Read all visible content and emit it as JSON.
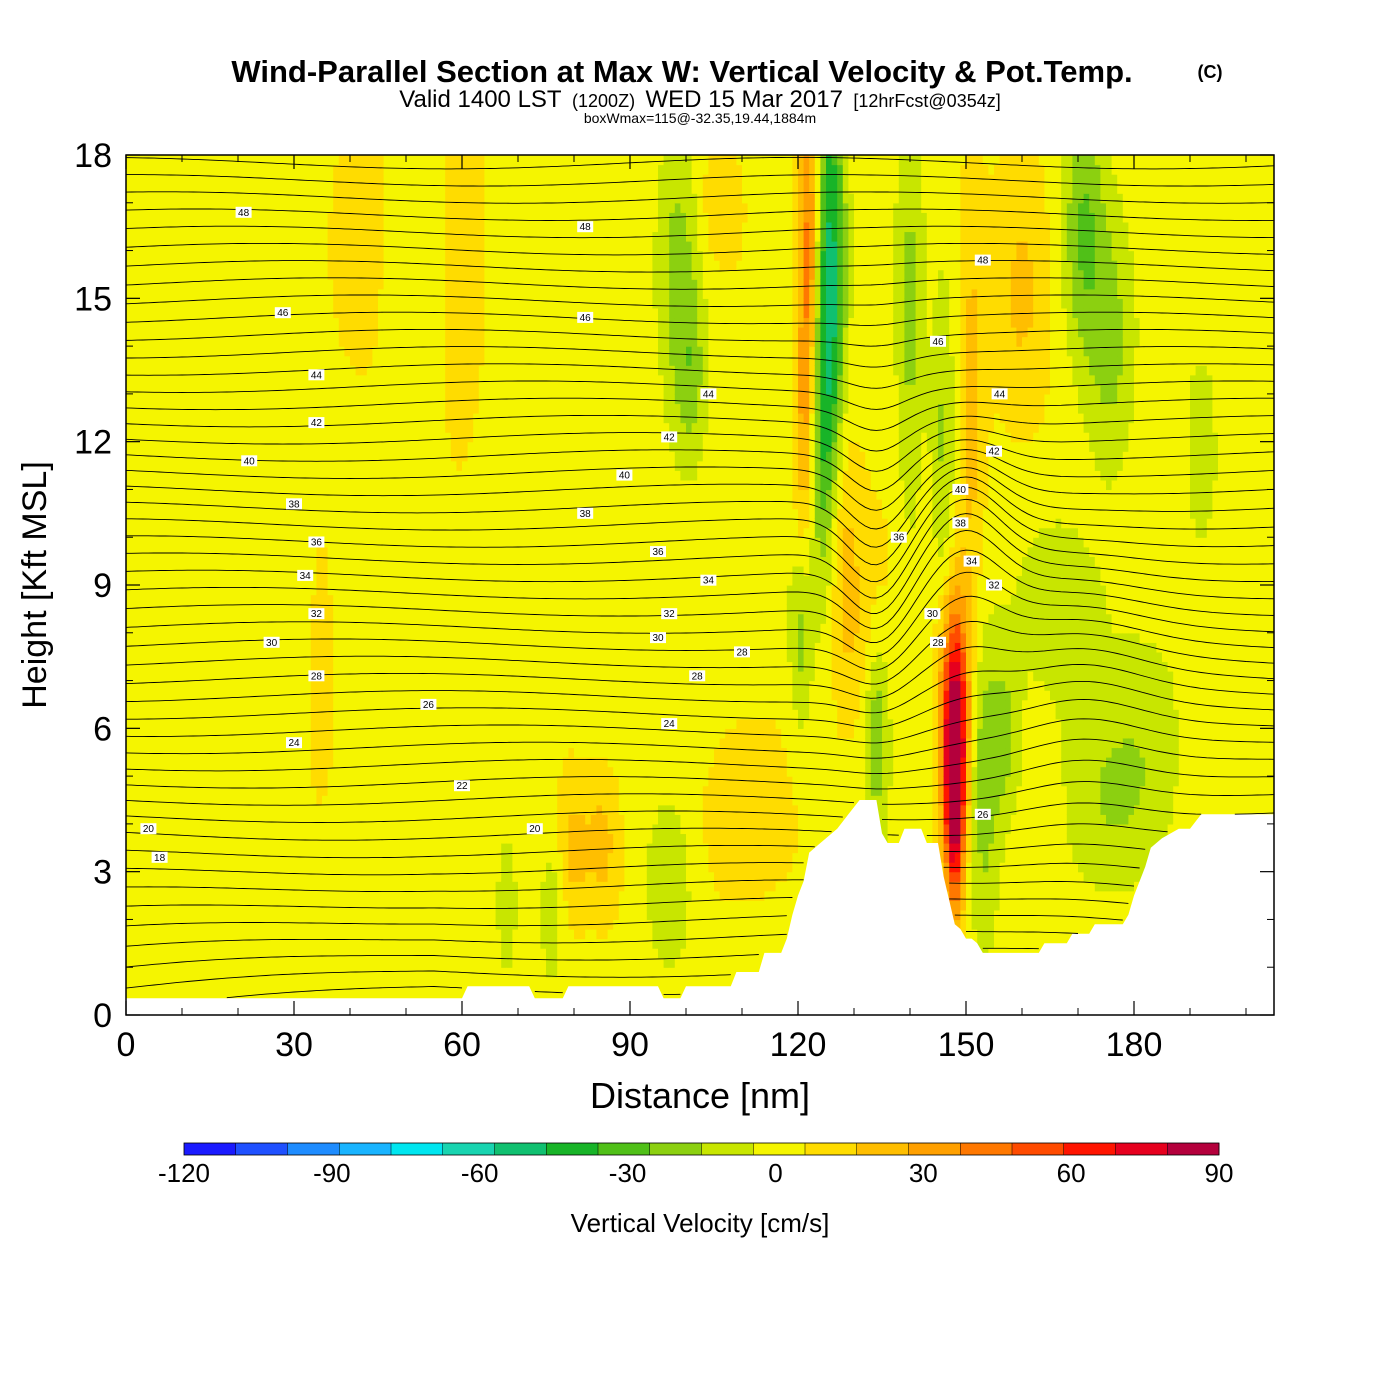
{
  "chart_data": {
    "type": "heatmap",
    "title": "Wind-Parallel Section at Max W: Vertical Velocity & Pot.Temp.",
    "title_mark": "(C)",
    "subtitle_parts": [
      "Valid 1400 LST",
      "(1200Z)",
      "WED 15 Mar 2017",
      "[12hrFcst@0354z]"
    ],
    "subtitle2": "boxWmax=115@-32.35,19.44,1884m",
    "xlabel": "Distance [nm]",
    "ylabel": "Height [Kft MSL]",
    "xlim": [
      0,
      205
    ],
    "ylim": [
      0,
      18
    ],
    "xticks": [
      0,
      30,
      60,
      90,
      120,
      150,
      180
    ],
    "yticks": [
      0,
      3,
      6,
      9,
      12,
      15,
      18
    ],
    "colorbar": {
      "label": "Vertical Velocity [cm/s]",
      "range": [
        -120,
        90
      ],
      "ticks": [
        -120,
        -90,
        -60,
        -30,
        0,
        30,
        60,
        90
      ],
      "colors": [
        "#1a1aff",
        "#1f50ff",
        "#1e8cff",
        "#19b4ff",
        "#00e6f0",
        "#18d4b0",
        "#10c070",
        "#18b428",
        "#50c018",
        "#8cd010",
        "#c8e600",
        "#f5f500",
        "#ffdc00",
        "#ffbe00",
        "#ffa000",
        "#ff7800",
        "#ff4b00",
        "#ff1400",
        "#e6001e",
        "#b4003c"
      ]
    },
    "terrain": [
      [
        0,
        0.35
      ],
      [
        60,
        0.35
      ],
      [
        61,
        0.6
      ],
      [
        72,
        0.6
      ],
      [
        73,
        0.35
      ],
      [
        78,
        0.35
      ],
      [
        79,
        0.6
      ],
      [
        95,
        0.6
      ],
      [
        96,
        0.35
      ],
      [
        99,
        0.35
      ],
      [
        100,
        0.6
      ],
      [
        108,
        0.6
      ],
      [
        109,
        0.9
      ],
      [
        113,
        0.9
      ],
      [
        114,
        1.3
      ],
      [
        117,
        1.3
      ],
      [
        118,
        1.6
      ],
      [
        119,
        2.1
      ],
      [
        120,
        2.5
      ],
      [
        121,
        2.8
      ],
      [
        122,
        3.4
      ],
      [
        124,
        3.6
      ],
      [
        127,
        3.9
      ],
      [
        129,
        4.2
      ],
      [
        131,
        4.5
      ],
      [
        134,
        4.5
      ],
      [
        135,
        3.8
      ],
      [
        136,
        3.6
      ],
      [
        138,
        3.6
      ],
      [
        139,
        3.9
      ],
      [
        142,
        3.9
      ],
      [
        143,
        3.6
      ],
      [
        145,
        3.6
      ],
      [
        146,
        2.9
      ],
      [
        147,
        2.4
      ],
      [
        148,
        1.9
      ],
      [
        149,
        1.8
      ],
      [
        150,
        1.6
      ],
      [
        151,
        1.6
      ],
      [
        152,
        1.5
      ],
      [
        153,
        1.3
      ],
      [
        163,
        1.3
      ],
      [
        164,
        1.5
      ],
      [
        168,
        1.5
      ],
      [
        169,
        1.7
      ],
      [
        172,
        1.7
      ],
      [
        173,
        1.9
      ],
      [
        178,
        1.9
      ],
      [
        179,
        2.1
      ],
      [
        180,
        2.5
      ],
      [
        181,
        2.8
      ],
      [
        182,
        3.1
      ],
      [
        183,
        3.5
      ],
      [
        185,
        3.7
      ],
      [
        188,
        3.9
      ],
      [
        190,
        3.9
      ],
      [
        192,
        4.2
      ],
      [
        205,
        4.2
      ]
    ],
    "contour_labels": [
      {
        "v": "48",
        "x": 21,
        "y": 16.8
      },
      {
        "v": "48",
        "x": 82,
        "y": 16.5
      },
      {
        "v": "48",
        "x": 153,
        "y": 15.8
      },
      {
        "v": "46",
        "x": 28,
        "y": 14.7
      },
      {
        "v": "46",
        "x": 82,
        "y": 14.6
      },
      {
        "v": "46",
        "x": 145,
        "y": 14.1
      },
      {
        "v": "44",
        "x": 34,
        "y": 13.4
      },
      {
        "v": "44",
        "x": 104,
        "y": 13.0
      },
      {
        "v": "44",
        "x": 156,
        "y": 13.0
      },
      {
        "v": "42",
        "x": 34,
        "y": 12.4
      },
      {
        "v": "42",
        "x": 97,
        "y": 12.1
      },
      {
        "v": "42",
        "x": 155,
        "y": 11.8
      },
      {
        "v": "40",
        "x": 22,
        "y": 11.6
      },
      {
        "v": "40",
        "x": 89,
        "y": 11.3
      },
      {
        "v": "40",
        "x": 149,
        "y": 11.0
      },
      {
        "v": "38",
        "x": 30,
        "y": 10.7
      },
      {
        "v": "38",
        "x": 82,
        "y": 10.5
      },
      {
        "v": "38",
        "x": 149,
        "y": 10.3
      },
      {
        "v": "36",
        "x": 34,
        "y": 9.9
      },
      {
        "v": "36",
        "x": 95,
        "y": 9.7
      },
      {
        "v": "36",
        "x": 138,
        "y": 10.0
      },
      {
        "v": "34",
        "x": 32,
        "y": 9.2
      },
      {
        "v": "34",
        "x": 104,
        "y": 9.1
      },
      {
        "v": "34",
        "x": 151,
        "y": 9.5
      },
      {
        "v": "32",
        "x": 34,
        "y": 8.4
      },
      {
        "v": "32",
        "x": 97,
        "y": 8.4
      },
      {
        "v": "32",
        "x": 155,
        "y": 9.0
      },
      {
        "v": "30",
        "x": 26,
        "y": 7.8
      },
      {
        "v": "30",
        "x": 95,
        "y": 7.9
      },
      {
        "v": "30",
        "x": 144,
        "y": 8.4
      },
      {
        "v": "28",
        "x": 34,
        "y": 7.1
      },
      {
        "v": "28",
        "x": 102,
        "y": 7.1
      },
      {
        "v": "28",
        "x": 110,
        "y": 7.6
      },
      {
        "v": "28",
        "x": 145,
        "y": 7.8
      },
      {
        "v": "26",
        "x": 54,
        "y": 6.5
      },
      {
        "v": "24",
        "x": 30,
        "y": 5.7
      },
      {
        "v": "24",
        "x": 97,
        "y": 6.1
      },
      {
        "v": "22",
        "x": 60,
        "y": 4.8
      },
      {
        "v": "20",
        "x": 4,
        "y": 3.9
      },
      {
        "v": "20",
        "x": 73,
        "y": 3.9
      },
      {
        "v": "18",
        "x": 6,
        "y": 3.3
      },
      {
        "v": "26",
        "x": 153,
        "y": 4.2
      }
    ],
    "w_features": [
      {
        "x": 126,
        "y": 15.5,
        "sx": 1.8,
        "sy": 3.5,
        "w": -50
      },
      {
        "x": 124,
        "y": 12.5,
        "sx": 1.5,
        "sy": 2.5,
        "w": -25
      },
      {
        "x": 122,
        "y": 16,
        "sx": 1.2,
        "sy": 2.5,
        "w": 40
      },
      {
        "x": 121,
        "y": 12,
        "sx": 1.2,
        "sy": 2,
        "w": 22
      },
      {
        "x": 128,
        "y": 9.5,
        "sx": 1.8,
        "sy": 2,
        "w": 20
      },
      {
        "x": 133,
        "y": 8,
        "sx": 2.5,
        "sy": 1.5,
        "w": 15
      },
      {
        "x": 140,
        "y": 14.5,
        "sx": 1.8,
        "sy": 3.5,
        "w": -20
      },
      {
        "x": 146,
        "y": 12,
        "sx": 1.6,
        "sy": 2.5,
        "w": -20
      },
      {
        "x": 151,
        "y": 12.5,
        "sx": 1.8,
        "sy": 3,
        "w": 18
      },
      {
        "x": 148,
        "y": 6.2,
        "sx": 1.8,
        "sy": 1.8,
        "w": 80
      },
      {
        "x": 148,
        "y": 4.2,
        "sx": 1.2,
        "sy": 1.5,
        "w": 60
      },
      {
        "x": 153,
        "y": 4.8,
        "sx": 2.2,
        "sy": 2.2,
        "w": -25
      },
      {
        "x": 134,
        "y": 6.2,
        "sx": 1.6,
        "sy": 1.8,
        "w": -28
      },
      {
        "x": 120.5,
        "y": 8,
        "sx": 1.5,
        "sy": 1.5,
        "w": -22
      },
      {
        "x": 99,
        "y": 15.5,
        "sx": 2.8,
        "sy": 2.5,
        "w": -22
      },
      {
        "x": 101,
        "y": 13.2,
        "sx": 2,
        "sy": 1.3,
        "w": -15
      },
      {
        "x": 171,
        "y": 16.5,
        "sx": 2.8,
        "sy": 2,
        "w": -28
      },
      {
        "x": 176,
        "y": 13.8,
        "sx": 3,
        "sy": 2,
        "w": -20
      },
      {
        "x": 160,
        "y": 15,
        "sx": 3.5,
        "sy": 2,
        "w": 14
      },
      {
        "x": 167,
        "y": 8.5,
        "sx": 6,
        "sy": 1.5,
        "w": -15
      },
      {
        "x": 157,
        "y": 5.8,
        "sx": 2.2,
        "sy": 1.3,
        "w": -20
      },
      {
        "x": 175,
        "y": 4.5,
        "sx": 6,
        "sy": 1.5,
        "w": -15
      },
      {
        "x": 110,
        "y": 4,
        "sx": 7,
        "sy": 1.3,
        "w": 7
      },
      {
        "x": 85,
        "y": 3.6,
        "sx": 2.2,
        "sy": 1,
        "w": 18
      },
      {
        "x": 80,
        "y": 3.4,
        "sx": 1.8,
        "sy": 1,
        "w": 16
      },
      {
        "x": 97,
        "y": 2.6,
        "sx": 3,
        "sy": 1.3,
        "w": -18
      },
      {
        "x": 68,
        "y": 2.4,
        "sx": 1.2,
        "sy": 1,
        "w": -18
      },
      {
        "x": 76,
        "y": 2.2,
        "sx": 1.5,
        "sy": 1,
        "w": -15
      },
      {
        "x": 60,
        "y": 16,
        "sx": 2.5,
        "sy": 2.5,
        "w": 12
      },
      {
        "x": 42,
        "y": 16.5,
        "sx": 3,
        "sy": 2,
        "w": 10
      },
      {
        "x": 35,
        "y": 8,
        "sx": 1.5,
        "sy": 2,
        "w": 7
      },
      {
        "x": 105,
        "y": 17,
        "sx": 3,
        "sy": 1,
        "w": 10
      },
      {
        "x": 192,
        "y": 12,
        "sx": 2,
        "sy": 1.5,
        "w": -15
      },
      {
        "x": 183,
        "y": 6,
        "sx": 5,
        "sy": 2,
        "w": -10
      }
    ]
  }
}
